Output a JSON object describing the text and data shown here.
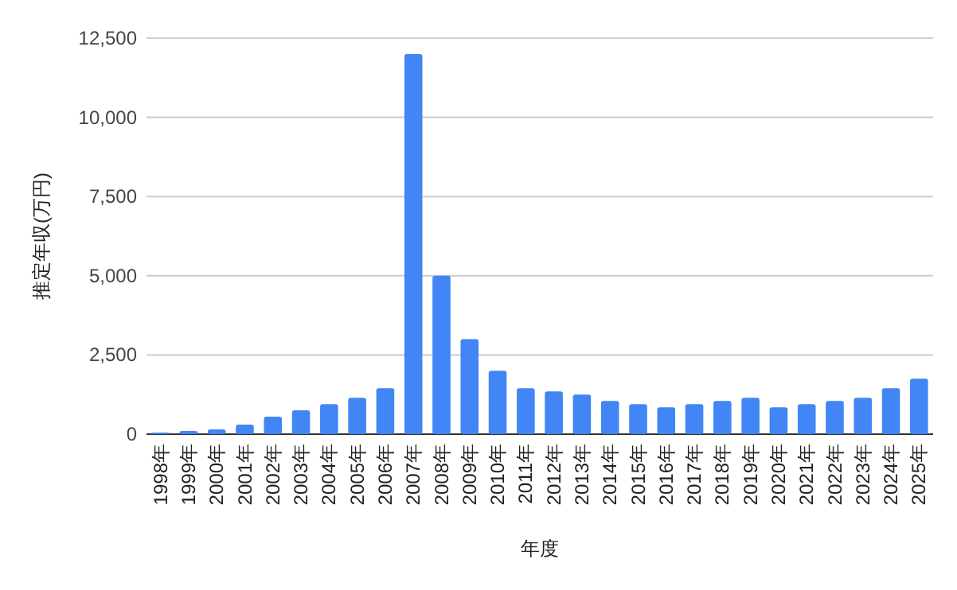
{
  "chart_data": {
    "type": "bar",
    "xlabel": "年度",
    "ylabel": "推定年収(万円)",
    "categories": [
      "1998年",
      "1999年",
      "2000年",
      "2001年",
      "2002年",
      "2003年",
      "2004年",
      "2005年",
      "2006年",
      "2007年",
      "2008年",
      "2009年",
      "2010年",
      "2011年",
      "2012年",
      "2013年",
      "2014年",
      "2015年",
      "2016年",
      "2017年",
      "2018年",
      "2019年",
      "2020年",
      "2021年",
      "2022年",
      "2023年",
      "2024年",
      "2025年"
    ],
    "values": [
      50,
      100,
      150,
      300,
      550,
      750,
      950,
      1150,
      1450,
      12000,
      5000,
      3000,
      2000,
      1450,
      1350,
      1250,
      1050,
      950,
      850,
      950,
      1050,
      1150,
      850,
      950,
      1050,
      1150,
      1450,
      1750
    ],
    "color": "#4285f4",
    "ylim": [
      0,
      12500
    ],
    "yticks": [
      {
        "value": 0,
        "label": "0"
      },
      {
        "value": 2500,
        "label": "2,500"
      },
      {
        "value": 5000,
        "label": "5,000"
      },
      {
        "value": 7500,
        "label": "7,500"
      },
      {
        "value": 10000,
        "label": "10,000"
      },
      {
        "value": 12500,
        "label": "12,500"
      }
    ],
    "grid": "y"
  }
}
